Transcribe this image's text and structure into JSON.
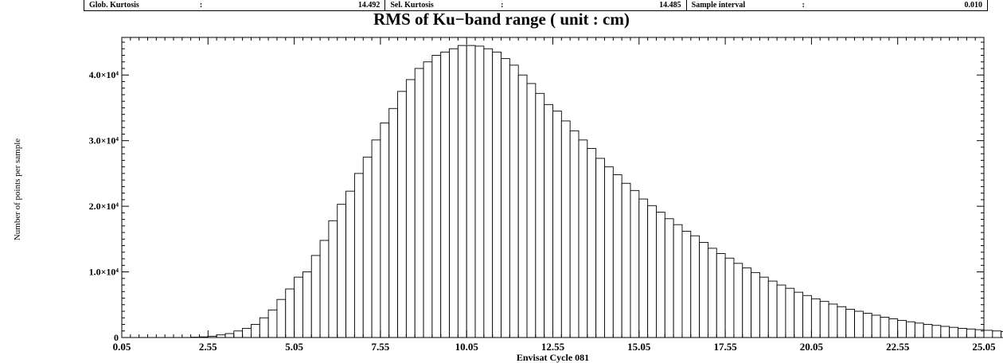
{
  "stats": [
    {
      "label": "Glob. Kurtosis",
      "colon": ":",
      "value": "14.492"
    },
    {
      "label": "Sel. Kurtosis",
      "colon": ":",
      "value": "14.485"
    },
    {
      "label": "Sample interval",
      "colon": ":",
      "value": "0.010"
    }
  ],
  "chart_data": {
    "type": "bar",
    "title": "RMS of Ku−band range  ( unit : cm)",
    "xlabel": "Envisat Cycle 081",
    "ylabel": "Number of points per sample",
    "xlim": [
      0.05,
      25.05
    ],
    "ylim": [
      0,
      45000
    ],
    "x_ticks": [
      "0.05",
      "2.55",
      "5.05",
      "7.55",
      "10.05",
      "12.55",
      "15.05",
      "17.55",
      "20.05",
      "22.55",
      "25.05"
    ],
    "y_ticks": [
      {
        "value": 0,
        "label": "0"
      },
      {
        "value": 10000,
        "label": "1.0×10⁴"
      },
      {
        "value": 20000,
        "label": "2.0×10⁴"
      },
      {
        "value": 30000,
        "label": "3.0×10⁴"
      },
      {
        "value": 40000,
        "label": "4.0×10⁴"
      }
    ],
    "bin_start": 2.05,
    "bin_width": 0.25,
    "values": [
      50,
      100,
      200,
      400,
      600,
      1000,
      1400,
      2000,
      3000,
      4200,
      5800,
      7400,
      9200,
      10000,
      12500,
      14800,
      17800,
      20300,
      22300,
      25000,
      27500,
      30100,
      32700,
      34900,
      37500,
      39300,
      41000,
      42000,
      43000,
      43500,
      44000,
      44500,
      44500,
      44400,
      44000,
      43500,
      42500,
      41500,
      40000,
      38700,
      37200,
      35500,
      34500,
      33000,
      31500,
      30100,
      28800,
      27300,
      26000,
      24800,
      23500,
      22400,
      21100,
      20100,
      19100,
      18100,
      17200,
      16200,
      15500,
      14500,
      13600,
      12800,
      12100,
      11300,
      10600,
      9900,
      9200,
      8600,
      8000,
      7500,
      6900,
      6400,
      5900,
      5500,
      5100,
      4700,
      4300,
      4000,
      3700,
      3400,
      3100,
      2850,
      2600,
      2400,
      2200,
      2000,
      1850,
      1700,
      1550,
      1400,
      1300,
      1200,
      1100,
      1000,
      900,
      820,
      750,
      680,
      620,
      560,
      500,
      460,
      420,
      380,
      340,
      300,
      270,
      240,
      220,
      200,
      180,
      160,
      140,
      120,
      100,
      90,
      80,
      70,
      60,
      50,
      40,
      30,
      20,
      10,
      5,
      0
    ],
    "grid": false,
    "legend": "none"
  }
}
